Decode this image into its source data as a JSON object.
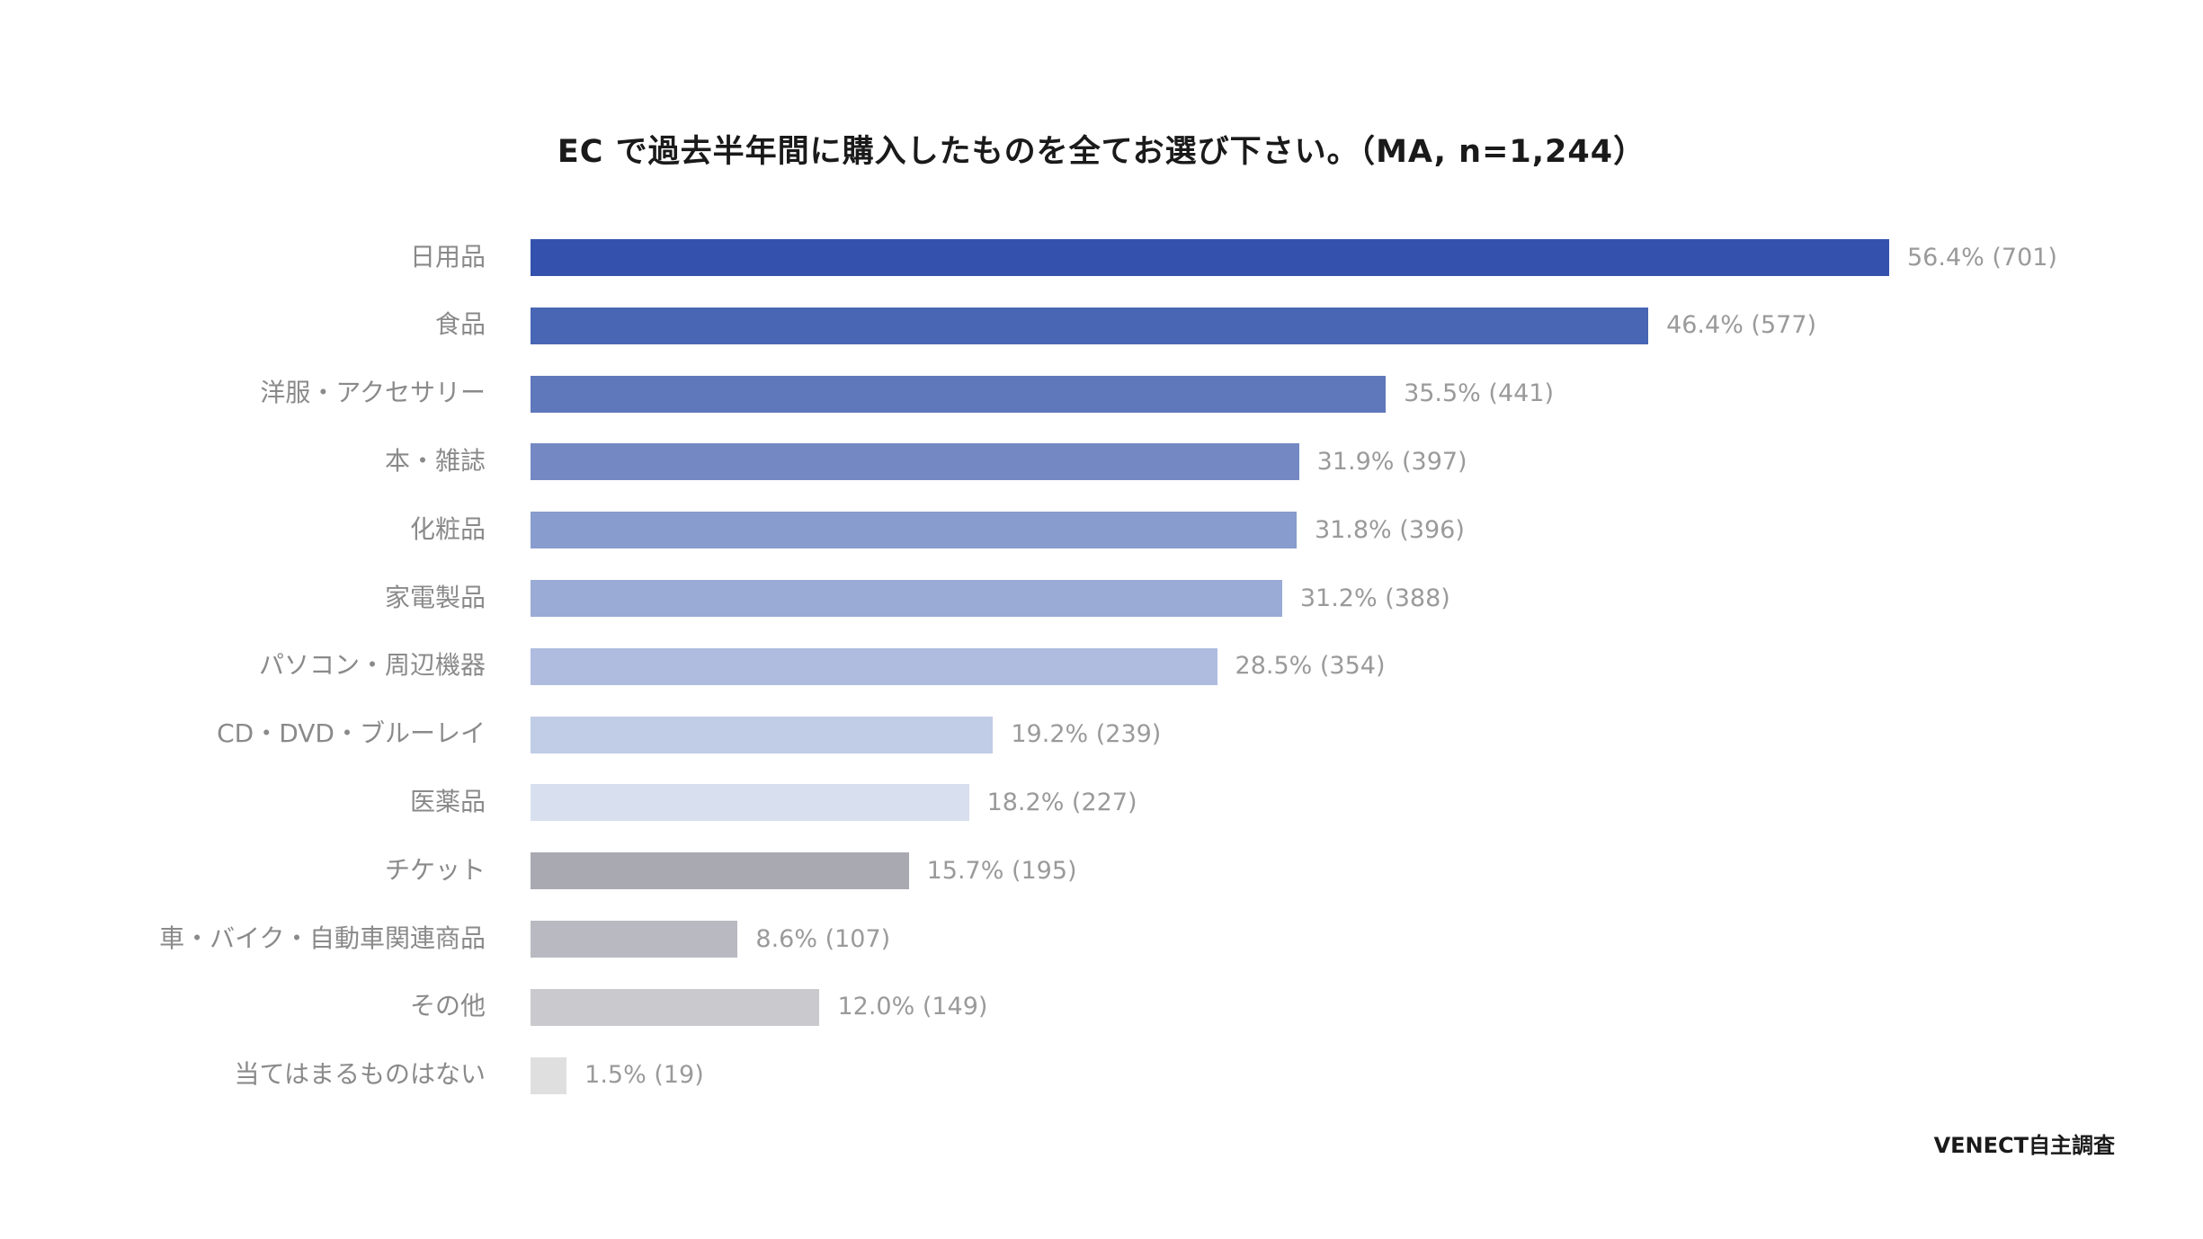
{
  "chart_data": {
    "type": "bar",
    "orientation": "horizontal",
    "title": "EC で過去半年間に購入したものを全てお選び下さい。（MA, n=1,244）",
    "categories": [
      "日用品",
      "食品",
      "洋服・アクセサリー",
      "本・雑誌",
      "化粧品",
      "家電製品",
      "パソコン・周辺機器",
      "CD・DVD・ブルーレイ",
      "医薬品",
      "チケット",
      "車・バイク・自動車関連商品",
      "その他",
      "当てはまるものはない"
    ],
    "values": [
      56.4,
      46.4,
      35.5,
      31.9,
      31.8,
      31.2,
      28.5,
      19.2,
      18.2,
      15.7,
      8.6,
      12.0,
      1.5
    ],
    "counts": [
      701,
      577,
      441,
      397,
      396,
      388,
      354,
      239,
      227,
      195,
      107,
      149,
      19
    ],
    "value_labels": [
      "56.4% (701)",
      "46.4% (577)",
      "35.5% (441)",
      "31.9% (397)",
      "31.8% (396)",
      "31.2% (388)",
      "28.5% (354)",
      "19.2% (239)",
      "18.2% (227)",
      "15.7% (195)",
      "8.6% (107)",
      "12.0% (149)",
      "1.5% (19)"
    ],
    "colors": [
      "#3452ad",
      "#4866b4",
      "#5f78bc",
      "#7489c4",
      "#889ccd",
      "#9aabd6",
      "#afbcdf",
      "#c1cde6",
      "#d8dfee",
      "#a9a9b1",
      "#b9b9c1",
      "#cacace",
      "#dfdfe0"
    ],
    "xlim": [
      0,
      60
    ],
    "grid": false,
    "legend": "none"
  },
  "source": "VENECT自主調査"
}
